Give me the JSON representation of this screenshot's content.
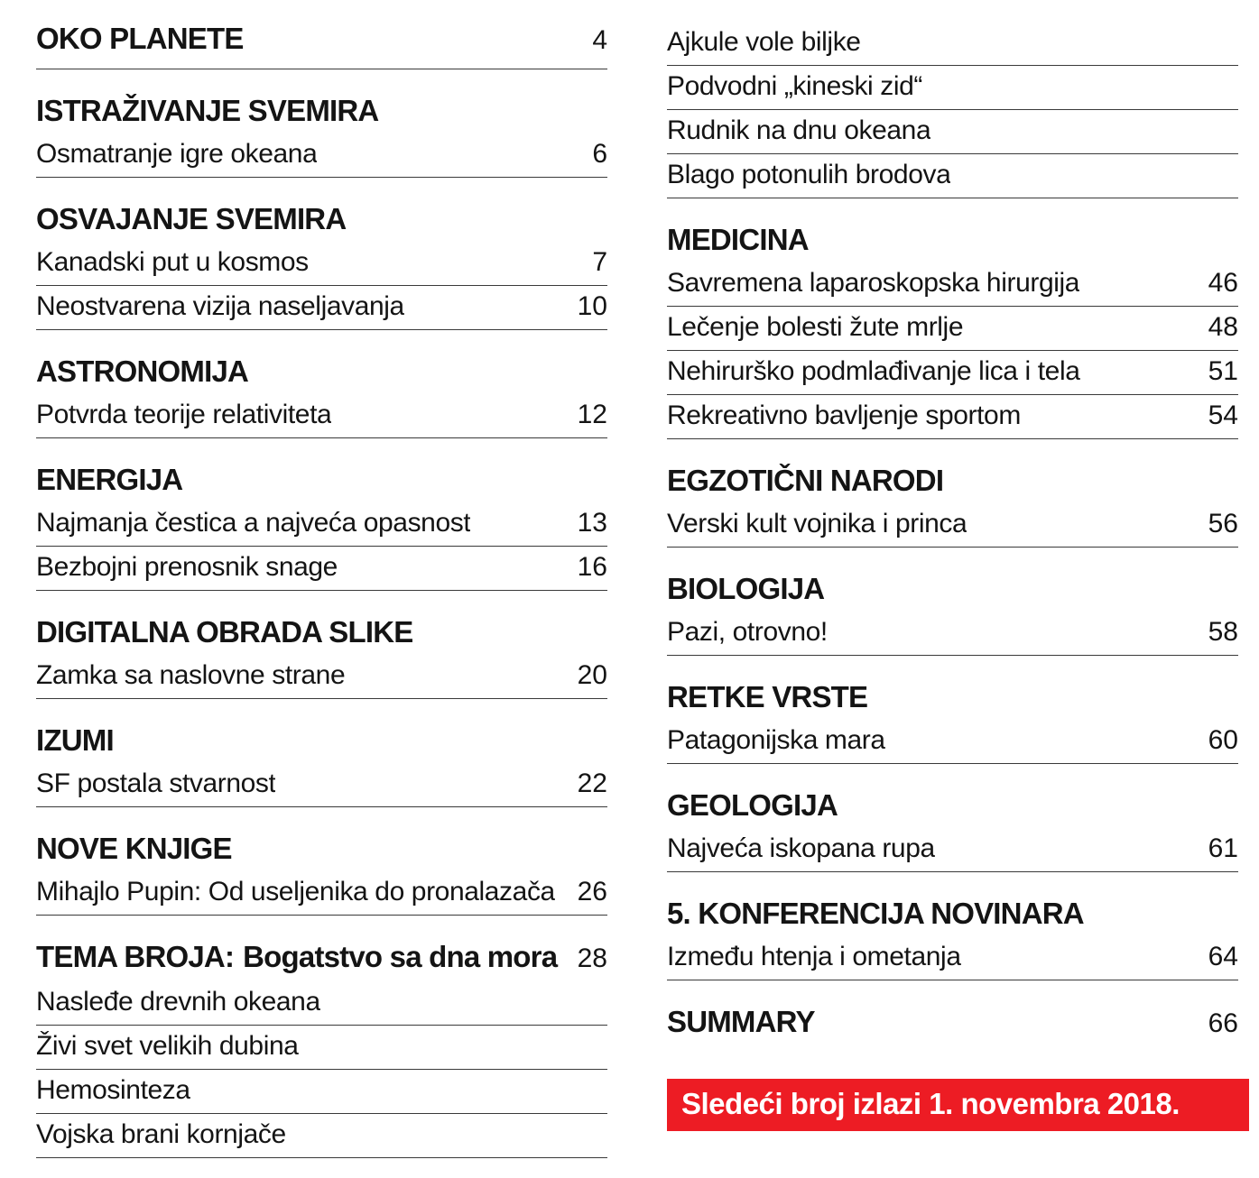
{
  "page": {
    "background": "#ffffff",
    "text_color": "#141414",
    "rule_color": "#3a3a3a"
  },
  "banner": {
    "text": "Sledeći broj izlazi 1. novembra 2018.",
    "background": "#ed1c24",
    "text_color": "#ffffff"
  },
  "columns": [
    {
      "blocks": [
        {
          "heading": "OKO PLANETE",
          "heading_page": "4",
          "ruled": true,
          "entries": []
        },
        {
          "heading": "ISTRAŽIVANJE SVEMIRA",
          "entries": [
            {
              "title": "Osmatranje igre okeana",
              "page": "6"
            }
          ]
        },
        {
          "heading": "OSVAJANJE SVEMIRA",
          "entries": [
            {
              "title": "Kanadski put u kosmos",
              "page": "7"
            },
            {
              "title": "Neostvarena vizija naseljavanja",
              "page": "10"
            }
          ]
        },
        {
          "heading": "ASTRONOMIJA",
          "entries": [
            {
              "title": "Potvrda teorije relativiteta",
              "page": "12"
            }
          ]
        },
        {
          "heading": "ENERGIJA",
          "entries": [
            {
              "title": "Najmanja čestica a najveća opasnost",
              "page": "13"
            },
            {
              "title": "Bezbojni prenosnik snage",
              "page": "16"
            }
          ]
        },
        {
          "heading": "DIGITALNA OBRADA SLIKE",
          "entries": [
            {
              "title": "Zamka sa naslovne strane",
              "page": "20"
            }
          ]
        },
        {
          "heading": "IZUMI",
          "entries": [
            {
              "title": "SF postala stvarnost",
              "page": "22"
            }
          ]
        },
        {
          "heading": "NOVE KNJIGE",
          "entries": [
            {
              "title": "Mihajlo Pupin: Od useljenika do pronalazača",
              "page": "26"
            }
          ]
        },
        {
          "heading": "TEMA BROJA:",
          "heading_suffix": "Bogatstvo sa dna mora",
          "heading_page": "28",
          "entries": [
            {
              "title": "Nasleđe drevnih okeana"
            },
            {
              "title": "Živi svet velikih dubina"
            },
            {
              "title": "Hemosinteza"
            },
            {
              "title": "Vojska brani kornjače"
            }
          ]
        }
      ]
    },
    {
      "blocks": [
        {
          "entries": [
            {
              "title": "Ajkule vole biljke"
            },
            {
              "title": "Podvodni „kineski zid“"
            },
            {
              "title": "Rudnik na dnu okeana"
            },
            {
              "title": "Blago potonulih brodova"
            }
          ]
        },
        {
          "heading": "MEDICINA",
          "entries": [
            {
              "title": "Savremena laparoskopska hirurgija",
              "page": "46"
            },
            {
              "title": "Lečenje bolesti žute mrlje",
              "page": "48"
            },
            {
              "title": "Nehirurško podmlađivanje lica i tela",
              "page": "51"
            },
            {
              "title": "Rekreativno bavljenje sportom",
              "page": "54"
            }
          ]
        },
        {
          "heading": "EGZOTIČNI NARODI",
          "entries": [
            {
              "title": "Verski kult vojnika i princa",
              "page": "56"
            }
          ]
        },
        {
          "heading": "BIOLOGIJA",
          "entries": [
            {
              "title": "Pazi, otrovno!",
              "page": "58"
            }
          ]
        },
        {
          "heading": "RETKE VRSTE",
          "entries": [
            {
              "title": "Patagonijska mara",
              "page": "60"
            }
          ]
        },
        {
          "heading": "GEOLOGIJA",
          "entries": [
            {
              "title": "Najveća iskopana rupa",
              "page": "61"
            }
          ]
        },
        {
          "heading": "5. KONFERENCIJA NOVINARA",
          "entries": [
            {
              "title": "Između htenja i ometanja",
              "page": "64"
            }
          ]
        },
        {
          "heading": "SUMMARY",
          "heading_page": "66",
          "entries": []
        }
      ]
    }
  ]
}
